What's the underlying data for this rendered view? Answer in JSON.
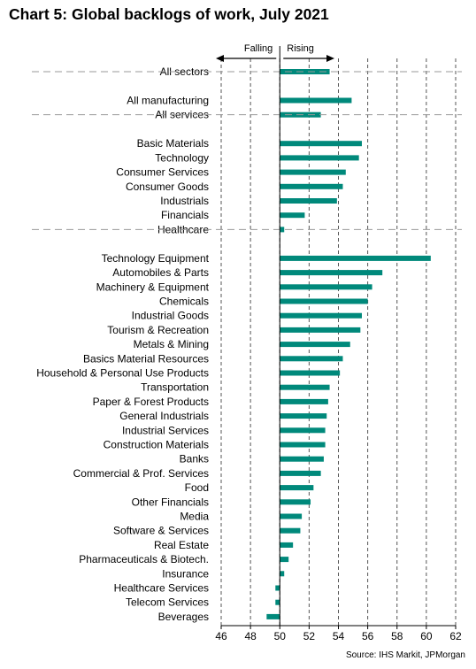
{
  "chart_data": {
    "type": "bar",
    "orientation": "horizontal",
    "title": "Chart 5: Global backlogs of work, July 2021",
    "source": "Source: IHS Markit, JPMorgan",
    "direction_labels": {
      "left": "Falling",
      "right": "Rising"
    },
    "baseline": 50,
    "xlim": [
      46,
      62
    ],
    "xticks": [
      46,
      48,
      50,
      52,
      54,
      56,
      58,
      60,
      62
    ],
    "bar_color": "#00897b",
    "groups": [
      {
        "categories": [
          "All sectors"
        ],
        "values": [
          53.4
        ]
      },
      {
        "categories": [
          "All manufacturing",
          "All services"
        ],
        "values": [
          54.9,
          52.8
        ]
      },
      {
        "categories": [
          "Basic Materials",
          "Technology",
          "Consumer Services",
          "Consumer Goods",
          "Industrials",
          "Financials",
          "Healthcare"
        ],
        "values": [
          55.6,
          55.4,
          54.5,
          54.3,
          53.9,
          51.7,
          50.3
        ]
      },
      {
        "categories": [
          "Technology Equipment",
          "Automobiles & Parts",
          "Machinery & Equipment",
          "Chemicals",
          "Industrial Goods",
          "Tourism & Recreation",
          "Metals & Mining",
          "Basics Material Resources",
          "Household & Personal Use Products",
          "Transportation",
          "Paper & Forest Products",
          "General Industrials",
          "Industrial Services",
          "Construction Materials",
          "Banks",
          "Commercial & Prof. Services",
          "Food",
          "Other Financials",
          "Media",
          "Software & Services",
          "Real Estate",
          "Pharmaceuticals & Biotech.",
          "Insurance",
          "Healthcare Services",
          "Telecom Services",
          "Beverages"
        ],
        "values": [
          60.3,
          57.0,
          56.3,
          56.0,
          55.6,
          55.5,
          54.8,
          54.3,
          54.1,
          53.4,
          53.3,
          53.2,
          53.1,
          53.1,
          53.0,
          52.8,
          52.3,
          52.1,
          51.5,
          51.4,
          50.9,
          50.6,
          50.3,
          49.7,
          49.7,
          49.1
        ]
      }
    ]
  }
}
